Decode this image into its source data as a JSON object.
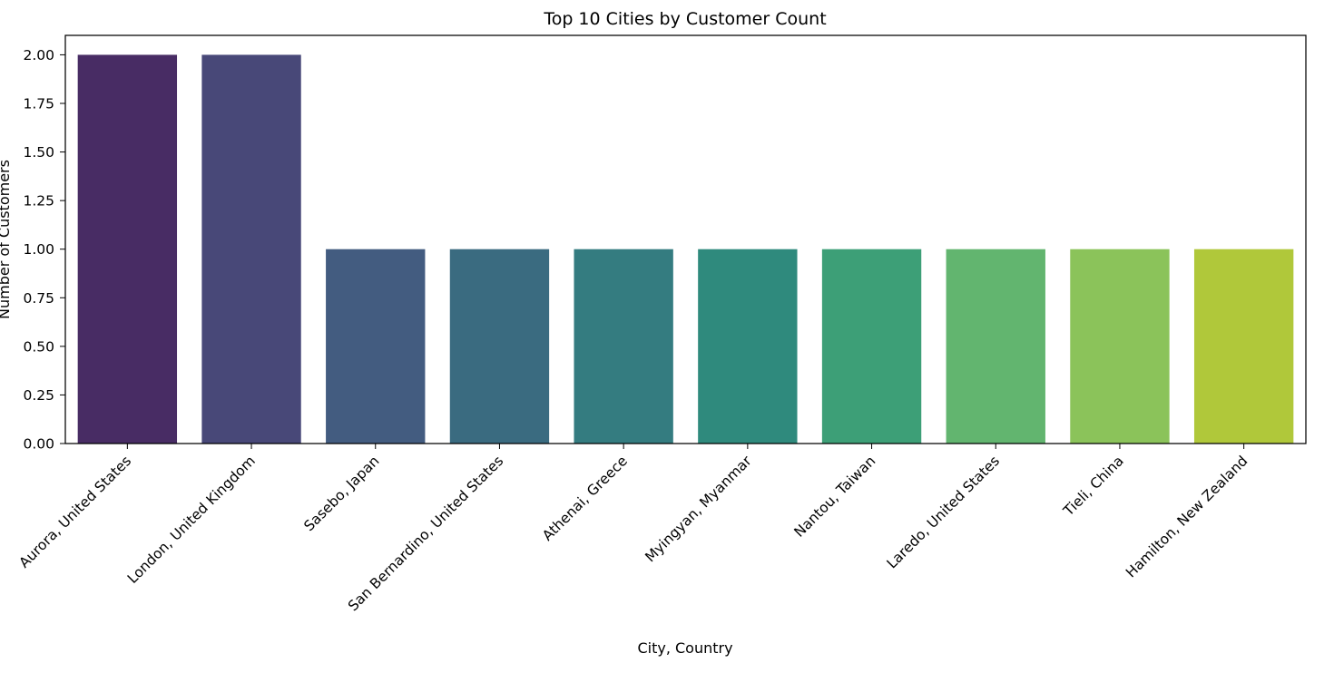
{
  "chart_data": {
    "type": "bar",
    "title": "Top 10 Cities by Customer Count",
    "xlabel": "City, Country",
    "ylabel": "Number of Customers",
    "categories": [
      "Aurora, United States",
      "London, United Kingdom",
      "Sasebo, Japan",
      "San Bernardino, United States",
      "Athenai, Greece",
      "Myingyan, Myanmar",
      "Nantou, Taiwan",
      "Laredo, United States",
      "Tieli, China",
      "Hamilton, New Zealand"
    ],
    "values": [
      2,
      2,
      1,
      1,
      1,
      1,
      1,
      1,
      1,
      1
    ],
    "ylim": [
      0,
      2.1
    ],
    "yticks": [
      "0.00",
      "0.25",
      "0.50",
      "0.75",
      "1.00",
      "1.25",
      "1.50",
      "1.75",
      "2.00"
    ],
    "colors": [
      "#482c64",
      "#484878",
      "#435c80",
      "#3a6b80",
      "#347c80",
      "#2f8a7d",
      "#3d9f77",
      "#62b56f",
      "#8bc35a",
      "#b0c83a"
    ],
    "grid": false,
    "legend": "none"
  }
}
